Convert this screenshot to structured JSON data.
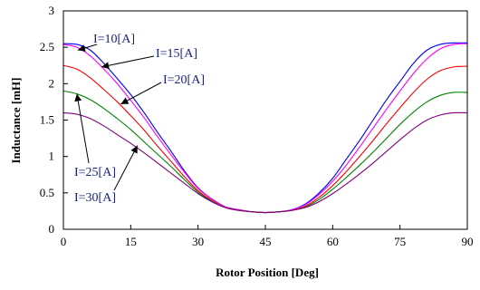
{
  "chart_data": {
    "type": "line",
    "xlabel": "Rotor Position  [Deg]",
    "ylabel": "Inductance  [mH]",
    "xlim": [
      0,
      90
    ],
    "ylim": [
      0,
      3
    ],
    "x_ticks": [
      0,
      15,
      30,
      45,
      60,
      75,
      90
    ],
    "y_ticks": [
      0,
      0.5,
      1,
      1.5,
      2,
      2.5,
      3
    ],
    "y_tick_labels": [
      "0",
      "0.5",
      "1",
      "1.5",
      "2",
      "2.5",
      "3"
    ],
    "grid": false,
    "series": [
      {
        "name": "I=10[A]",
        "color": "#0000ff",
        "x": [
          0,
          3,
          6,
          9,
          12,
          15,
          18,
          21,
          24,
          27,
          30,
          33,
          36,
          39,
          42,
          45,
          48,
          51,
          54,
          57,
          60,
          63,
          66,
          69,
          72,
          75,
          78,
          81,
          84,
          87,
          90
        ],
        "y": [
          2.55,
          2.54,
          2.46,
          2.28,
          2.07,
          1.85,
          1.6,
          1.33,
          1.07,
          0.8,
          0.57,
          0.42,
          0.31,
          0.27,
          0.24,
          0.23,
          0.24,
          0.27,
          0.35,
          0.5,
          0.7,
          0.96,
          1.22,
          1.5,
          1.78,
          2.03,
          2.28,
          2.46,
          2.54,
          2.56,
          2.56
        ]
      },
      {
        "name": "I=15[A]",
        "color": "#ff00ff",
        "x": [
          0,
          3,
          6,
          9,
          12,
          15,
          18,
          21,
          24,
          27,
          30,
          33,
          36,
          39,
          42,
          45,
          48,
          51,
          54,
          57,
          60,
          63,
          66,
          69,
          72,
          75,
          78,
          81,
          84,
          87,
          90
        ],
        "y": [
          2.54,
          2.5,
          2.38,
          2.2,
          2.0,
          1.77,
          1.53,
          1.27,
          1.02,
          0.78,
          0.56,
          0.42,
          0.31,
          0.27,
          0.24,
          0.23,
          0.24,
          0.27,
          0.34,
          0.48,
          0.66,
          0.88,
          1.13,
          1.39,
          1.65,
          1.9,
          2.14,
          2.34,
          2.48,
          2.54,
          2.55
        ]
      },
      {
        "name": "I=20[A]",
        "color": "#ff0000",
        "x": [
          0,
          3,
          6,
          9,
          12,
          15,
          18,
          21,
          24,
          27,
          30,
          33,
          36,
          39,
          42,
          45,
          48,
          51,
          54,
          57,
          60,
          63,
          66,
          69,
          72,
          75,
          78,
          81,
          84,
          87,
          90
        ],
        "y": [
          2.25,
          2.2,
          2.08,
          1.92,
          1.75,
          1.56,
          1.36,
          1.14,
          0.93,
          0.72,
          0.53,
          0.4,
          0.3,
          0.26,
          0.24,
          0.23,
          0.24,
          0.26,
          0.32,
          0.44,
          0.6,
          0.79,
          1.0,
          1.22,
          1.45,
          1.67,
          1.88,
          2.06,
          2.18,
          2.23,
          2.24
        ]
      },
      {
        "name": "I=25[A]",
        "color": "#008000",
        "x": [
          0,
          3,
          6,
          9,
          12,
          15,
          18,
          21,
          24,
          27,
          30,
          33,
          36,
          39,
          42,
          45,
          48,
          51,
          54,
          57,
          60,
          63,
          66,
          69,
          72,
          75,
          78,
          81,
          84,
          87,
          90
        ],
        "y": [
          1.9,
          1.86,
          1.78,
          1.66,
          1.52,
          1.37,
          1.2,
          1.03,
          0.86,
          0.68,
          0.51,
          0.39,
          0.3,
          0.26,
          0.24,
          0.23,
          0.24,
          0.26,
          0.31,
          0.41,
          0.55,
          0.71,
          0.88,
          1.06,
          1.25,
          1.44,
          1.61,
          1.75,
          1.84,
          1.88,
          1.88
        ]
      },
      {
        "name": "I=30[A]",
        "color": "#800080",
        "x": [
          0,
          3,
          6,
          9,
          12,
          15,
          18,
          21,
          24,
          27,
          30,
          33,
          36,
          39,
          42,
          45,
          48,
          51,
          54,
          57,
          60,
          63,
          66,
          69,
          72,
          75,
          78,
          81,
          84,
          87,
          90
        ],
        "y": [
          1.6,
          1.58,
          1.52,
          1.42,
          1.3,
          1.18,
          1.05,
          0.91,
          0.77,
          0.63,
          0.49,
          0.38,
          0.3,
          0.26,
          0.24,
          0.23,
          0.24,
          0.26,
          0.3,
          0.38,
          0.49,
          0.62,
          0.76,
          0.91,
          1.07,
          1.23,
          1.38,
          1.5,
          1.57,
          1.6,
          1.6
        ]
      }
    ],
    "annotations": [
      {
        "text": "I=10[A]",
        "series": 0,
        "tip": [
          3.2,
          2.46
        ]
      },
      {
        "text": "I=15[A]",
        "series": 1,
        "tip": [
          8.5,
          2.23
        ]
      },
      {
        "text": "I=20[A]",
        "series": 2,
        "tip": [
          12.8,
          1.72
        ]
      },
      {
        "text": "I=25[A]",
        "series": 3,
        "tip": [
          3.0,
          1.86
        ]
      },
      {
        "text": "I=30[A]",
        "series": 4,
        "tip": [
          16.5,
          1.15
        ]
      }
    ]
  }
}
